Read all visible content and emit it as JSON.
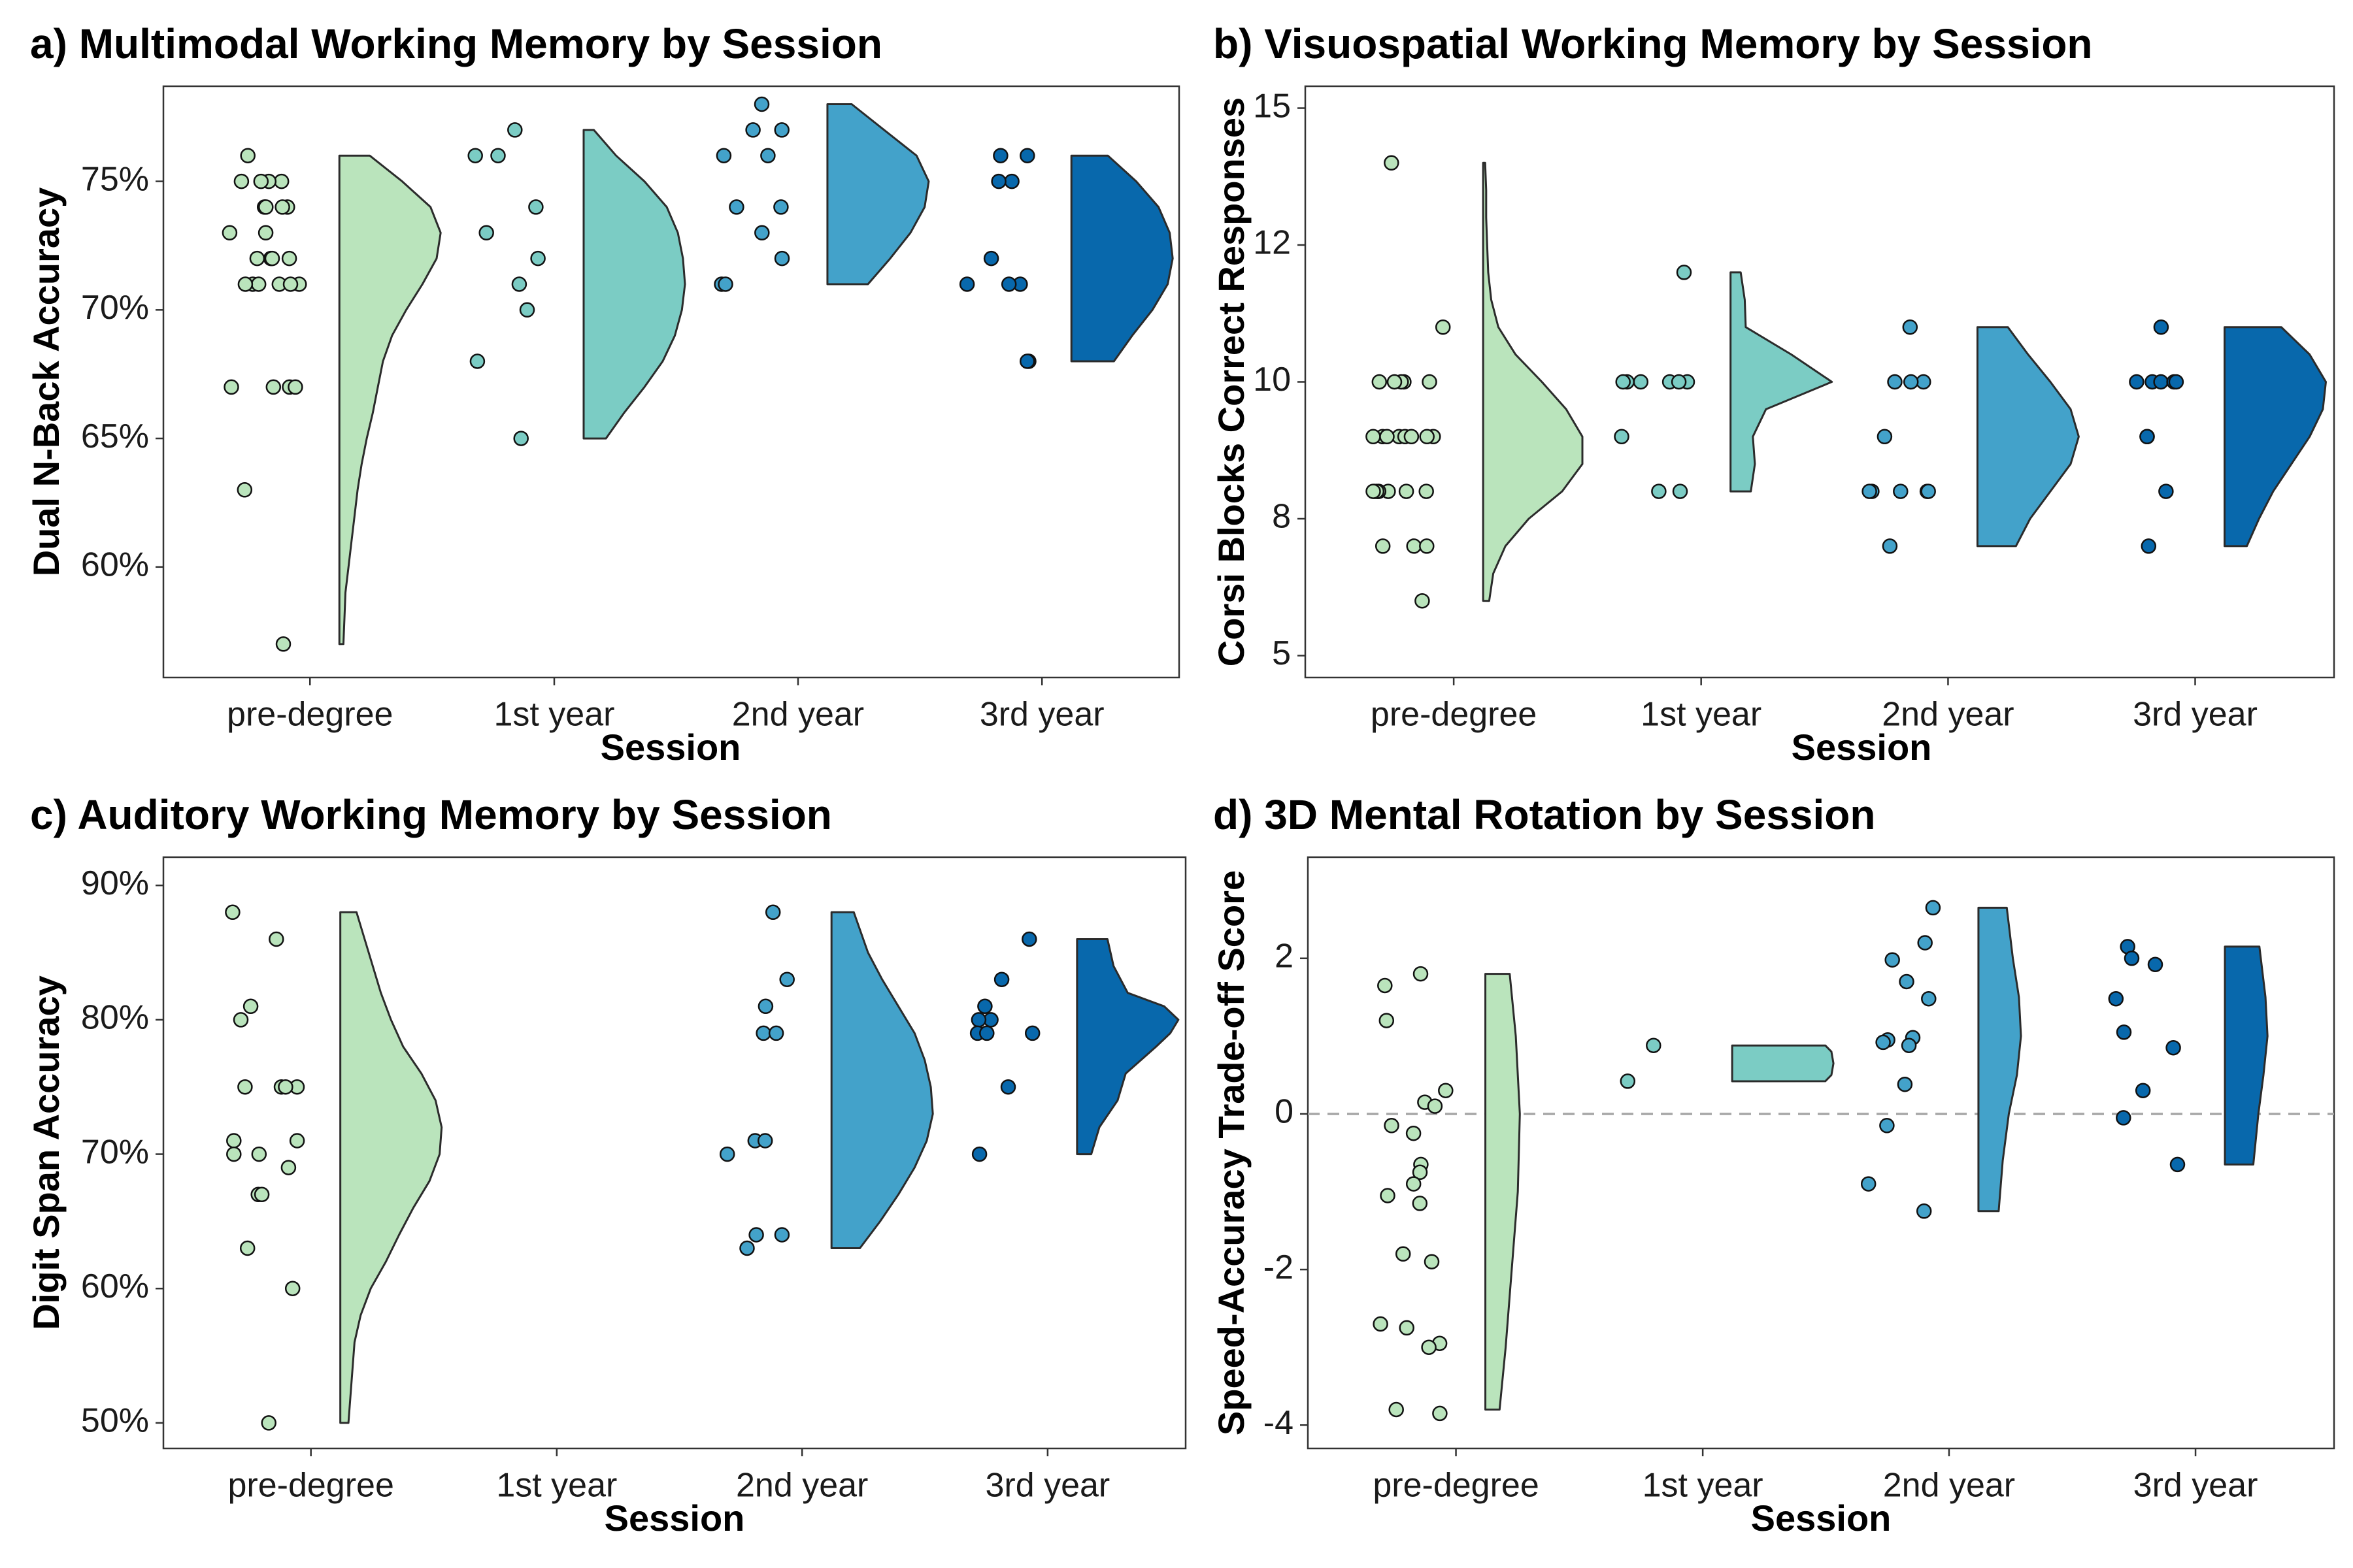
{
  "colors": {
    "pre-degree": "#bae4bc",
    "1st year": "#7bccc4",
    "2nd year": "#43a2ca",
    "3rd year": "#0868ac",
    "reference_line": "#a6a6a6"
  },
  "chart_data": [
    {
      "id": "a",
      "type": "raincloud",
      "title": "a) Multimodal Working Memory by Session",
      "xlabel": "Session",
      "ylabel": "Dual N-Back Accuracy",
      "categories": [
        "pre-degree",
        "1st year",
        "2nd year",
        "3rd year"
      ],
      "ylim": [
        55.7,
        78.7
      ],
      "yticks": [
        60,
        65,
        70,
        75
      ],
      "ytick_labels": [
        "60%",
        "65%",
        "70%",
        "75%"
      ],
      "grid": false,
      "legend": "none",
      "reference_line": null,
      "points": [
        [
          75,
          75,
          75,
          75,
          76,
          74,
          74,
          74,
          74,
          73,
          73,
          72,
          72,
          72,
          72,
          71,
          71,
          71,
          71,
          71,
          71,
          67,
          67,
          67,
          67,
          63,
          57
        ],
        [
          77,
          76,
          76,
          74,
          73,
          72,
          71,
          70,
          68,
          65
        ],
        [
          78,
          77,
          77,
          76,
          76,
          74,
          74,
          73,
          72,
          71,
          71
        ],
        [
          76,
          76,
          75,
          75,
          72,
          71,
          71,
          71,
          68,
          68
        ]
      ],
      "density": [
        [
          [
            57,
            0.04
          ],
          [
            58,
            0.05
          ],
          [
            59,
            0.06
          ],
          [
            60,
            0.09
          ],
          [
            61,
            0.12
          ],
          [
            62,
            0.15
          ],
          [
            63,
            0.18
          ],
          [
            64,
            0.22
          ],
          [
            65,
            0.27
          ],
          [
            66,
            0.33
          ],
          [
            67,
            0.38
          ],
          [
            68,
            0.43
          ],
          [
            69,
            0.52
          ],
          [
            70,
            0.66
          ],
          [
            71,
            0.82
          ],
          [
            72,
            0.96
          ],
          [
            73,
            1.0
          ],
          [
            74,
            0.9
          ],
          [
            75,
            0.62
          ],
          [
            76,
            0.3
          ]
        ],
        [
          [
            65,
            0.22
          ],
          [
            66,
            0.4
          ],
          [
            67,
            0.6
          ],
          [
            68,
            0.78
          ],
          [
            69,
            0.9
          ],
          [
            70,
            0.97
          ],
          [
            71,
            1.0
          ],
          [
            72,
            0.98
          ],
          [
            73,
            0.93
          ],
          [
            74,
            0.82
          ],
          [
            75,
            0.6
          ],
          [
            76,
            0.32
          ],
          [
            77,
            0.1
          ]
        ],
        [
          [
            71,
            0.4
          ],
          [
            72,
            0.62
          ],
          [
            73,
            0.82
          ],
          [
            74,
            0.96
          ],
          [
            75,
            1.0
          ],
          [
            76,
            0.88
          ],
          [
            77,
            0.56
          ],
          [
            78,
            0.24
          ]
        ],
        [
          [
            68,
            0.42
          ],
          [
            69,
            0.6
          ],
          [
            70,
            0.8
          ],
          [
            71,
            0.95
          ],
          [
            72,
            1.0
          ],
          [
            73,
            0.97
          ],
          [
            74,
            0.86
          ],
          [
            75,
            0.64
          ],
          [
            76,
            0.36
          ]
        ]
      ]
    },
    {
      "id": "b",
      "type": "raincloud",
      "title": "b) Visuospatial Working Memory by Session",
      "xlabel": "Session",
      "ylabel": "Corsi Blocks Correct Responses",
      "categories": [
        "pre-degree",
        "1st year",
        "2nd year",
        "3rd year"
      ],
      "ylim": [
        4.6,
        15.4
      ],
      "yticks": [
        5,
        7.5,
        10,
        12.5,
        15
      ],
      "ytick_labels": [
        "5",
        "8",
        "10",
        "12",
        "15"
      ],
      "grid": false,
      "legend": "none",
      "reference_line": null,
      "points": [
        [
          14,
          11,
          10,
          10,
          10,
          10,
          10,
          9,
          9,
          9,
          9,
          9,
          9,
          9,
          9,
          8,
          8,
          8,
          8,
          8,
          8,
          8,
          8,
          7,
          7,
          7,
          6
        ],
        [
          12,
          10,
          10,
          10,
          10,
          10,
          10,
          9,
          8,
          8
        ],
        [
          11,
          10,
          10,
          10,
          9,
          8,
          8,
          8,
          8,
          8,
          7
        ],
        [
          11,
          10,
          10,
          10,
          10,
          10,
          9,
          9,
          8,
          7
        ]
      ],
      "density": [
        [
          [
            6,
            0.06
          ],
          [
            6.5,
            0.1
          ],
          [
            7,
            0.22
          ],
          [
            7.5,
            0.45
          ],
          [
            8,
            0.78
          ],
          [
            8.5,
            0.98
          ],
          [
            9,
            0.98
          ],
          [
            9.5,
            0.82
          ],
          [
            10,
            0.58
          ],
          [
            10.5,
            0.32
          ],
          [
            11,
            0.15
          ],
          [
            11.5,
            0.08
          ],
          [
            12,
            0.05
          ],
          [
            12.5,
            0.04
          ],
          [
            13,
            0.03
          ],
          [
            13.5,
            0.03
          ],
          [
            14,
            0.02
          ]
        ],
        [
          [
            8,
            0.2
          ],
          [
            8.5,
            0.24
          ],
          [
            9,
            0.22
          ],
          [
            9.5,
            0.35
          ],
          [
            10,
            1.0
          ],
          [
            10.5,
            0.6
          ],
          [
            11,
            0.15
          ],
          [
            11.5,
            0.14
          ],
          [
            12,
            0.1
          ]
        ],
        [
          [
            7,
            0.38
          ],
          [
            7.5,
            0.52
          ],
          [
            8,
            0.72
          ],
          [
            8.5,
            0.92
          ],
          [
            9,
            1.0
          ],
          [
            9.5,
            0.92
          ],
          [
            10,
            0.72
          ],
          [
            10.5,
            0.5
          ],
          [
            11,
            0.3
          ]
        ],
        [
          [
            7,
            0.22
          ],
          [
            7.5,
            0.34
          ],
          [
            8,
            0.48
          ],
          [
            8.5,
            0.66
          ],
          [
            9,
            0.84
          ],
          [
            9.5,
            0.97
          ],
          [
            10,
            1.0
          ],
          [
            10.5,
            0.84
          ],
          [
            11,
            0.56
          ]
        ]
      ]
    },
    {
      "id": "c",
      "type": "raincloud",
      "title": "c) Auditory Working Memory by Session",
      "xlabel": "Session",
      "ylabel": "Digit Span Accuracy",
      "categories": [
        "pre-degree",
        "1st year",
        "2nd year",
        "3rd year"
      ],
      "ylim": [
        48.1,
        92.1
      ],
      "yticks": [
        50,
        60,
        70,
        80,
        90
      ],
      "ytick_labels": [
        "50%",
        "60%",
        "70%",
        "80%",
        "90%"
      ],
      "grid": false,
      "legend": "none",
      "reference_line": null,
      "points": [
        [
          88,
          86,
          81,
          80,
          75,
          75,
          75,
          75,
          71,
          71,
          70,
          70,
          69,
          67,
          67,
          63,
          60,
          50
        ],
        [],
        [
          88,
          83,
          81,
          79,
          79,
          71,
          71,
          70,
          64,
          64,
          63
        ],
        [
          86,
          83,
          81,
          80,
          80,
          79,
          79,
          79,
          75,
          70
        ]
      ],
      "density": [
        [
          [
            50,
            0.08
          ],
          [
            52,
            0.1
          ],
          [
            54,
            0.12
          ],
          [
            56,
            0.14
          ],
          [
            58,
            0.2
          ],
          [
            60,
            0.3
          ],
          [
            62,
            0.45
          ],
          [
            64,
            0.58
          ],
          [
            66,
            0.72
          ],
          [
            68,
            0.88
          ],
          [
            70,
            0.98
          ],
          [
            72,
            1.0
          ],
          [
            74,
            0.94
          ],
          [
            76,
            0.8
          ],
          [
            78,
            0.62
          ],
          [
            80,
            0.5
          ],
          [
            82,
            0.4
          ],
          [
            84,
            0.32
          ],
          [
            86,
            0.24
          ],
          [
            88,
            0.16
          ]
        ],
        [],
        [
          [
            63,
            0.28
          ],
          [
            65,
            0.48
          ],
          [
            67,
            0.66
          ],
          [
            69,
            0.82
          ],
          [
            71,
            0.94
          ],
          [
            73,
            1.0
          ],
          [
            75,
            0.98
          ],
          [
            77,
            0.92
          ],
          [
            79,
            0.82
          ],
          [
            81,
            0.66
          ],
          [
            83,
            0.5
          ],
          [
            85,
            0.36
          ],
          [
            88,
            0.22
          ]
        ],
        [
          [
            70,
            0.14
          ],
          [
            72,
            0.22
          ],
          [
            74,
            0.4
          ],
          [
            76,
            0.48
          ],
          [
            78,
            0.78
          ],
          [
            79,
            0.92
          ],
          [
            80,
            1.0
          ],
          [
            81,
            0.86
          ],
          [
            82,
            0.5
          ],
          [
            84,
            0.36
          ],
          [
            86,
            0.3
          ]
        ]
      ]
    },
    {
      "id": "d",
      "type": "raincloud",
      "title": "d) 3D Mental Rotation by Session",
      "xlabel": "Session",
      "ylabel": "Speed-Accuracy Trade-off Score",
      "categories": [
        "pre-degree",
        "1st year",
        "2nd year",
        "3rd year"
      ],
      "ylim": [
        -4.3,
        3.3
      ],
      "yticks": [
        -4,
        -2,
        0,
        2
      ],
      "ytick_labels": [
        "-4",
        "-2",
        "0",
        "2"
      ],
      "grid": false,
      "legend": "none",
      "reference_line": 0,
      "points": [
        [
          1.8,
          1.65,
          1.2,
          0.3,
          0.15,
          0.1,
          -0.15,
          -0.25,
          -0.65,
          -0.75,
          -0.9,
          -1.05,
          -1.15,
          -1.8,
          -1.9,
          -2.7,
          -2.75,
          -2.95,
          -3.0,
          -3.8,
          -3.85
        ],
        [
          0.88,
          0.42
        ],
        [
          2.65,
          2.2,
          1.98,
          1.7,
          1.48,
          0.98,
          0.95,
          0.92,
          0.88,
          0.38,
          -0.15,
          -0.9,
          -1.25
        ],
        [
          2.15,
          2.0,
          1.92,
          1.48,
          1.05,
          0.85,
          0.3,
          -0.05,
          -0.65
        ]
      ],
      "density": [
        [
          [
            -3.8,
            0.14
          ],
          [
            -3.0,
            0.2
          ],
          [
            -2.0,
            0.26
          ],
          [
            -1.0,
            0.32
          ],
          [
            0.0,
            0.34
          ],
          [
            1.0,
            0.3
          ],
          [
            1.8,
            0.24
          ]
        ],
        [
          [
            0.42,
            0.92
          ],
          [
            0.5,
            0.98
          ],
          [
            0.65,
            1.0
          ],
          [
            0.8,
            0.98
          ],
          [
            0.88,
            0.92
          ]
        ],
        [
          [
            -1.25,
            0.2
          ],
          [
            -0.6,
            0.24
          ],
          [
            0.0,
            0.3
          ],
          [
            0.5,
            0.38
          ],
          [
            1.0,
            0.42
          ],
          [
            1.5,
            0.4
          ],
          [
            2.0,
            0.34
          ],
          [
            2.65,
            0.28
          ]
        ],
        [
          [
            -0.65,
            0.28
          ],
          [
            0.0,
            0.33
          ],
          [
            0.5,
            0.38
          ],
          [
            1.0,
            0.42
          ],
          [
            1.5,
            0.4
          ],
          [
            2.15,
            0.34
          ]
        ]
      ]
    }
  ]
}
